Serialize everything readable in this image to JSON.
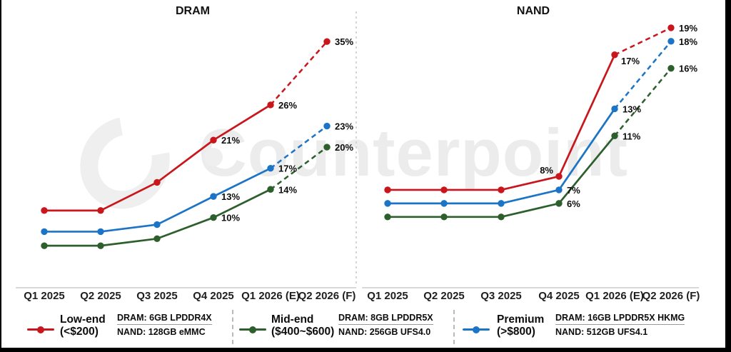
{
  "watermark": {
    "text": "Counterpoint",
    "logo": "counterpoint-logo",
    "color": "#ececec"
  },
  "colors": {
    "low_end": "#C9161D",
    "mid_end": "#2D5F2D",
    "premium": "#1B74C5",
    "axis": "#d9d9d9",
    "divider": "#c9c9c9"
  },
  "chart_data": [
    {
      "type": "line",
      "title": "DRAM",
      "unit": "%",
      "categories": [
        "Q1 2025",
        "Q2 2025",
        "Q3 2025",
        "Q4 2025",
        "Q1 2026 (E)",
        "Q2 2026 (F)"
      ],
      "forecast_from_index": 4,
      "ylim": [
        0,
        38
      ],
      "grid": false,
      "series": [
        {
          "name": "Low-end (<$200)",
          "color": "#C9161D",
          "values": [
            11,
            11,
            15,
            21,
            26,
            35
          ],
          "labels": [
            "",
            "",
            "",
            "21%",
            "26%",
            "35%"
          ]
        },
        {
          "name": "Mid-end ($400~$600)",
          "color": "#2D5F2D",
          "values": [
            6,
            6,
            7,
            10,
            14,
            20
          ],
          "labels": [
            "",
            "",
            "",
            "10%",
            "14%",
            "20%"
          ]
        },
        {
          "name": "Premium (>$800)",
          "color": "#1B74C5",
          "values": [
            8,
            8,
            9,
            13,
            17,
            23
          ],
          "labels": [
            "",
            "",
            "",
            "13%",
            "17%",
            "23%"
          ]
        }
      ]
    },
    {
      "type": "line",
      "title": "NAND",
      "unit": "%",
      "categories": [
        "Q1 2025",
        "Q2 2025",
        "Q3 2025",
        "Q4 2025",
        "Q1 2026 (E)",
        "Q2 2026 (F)"
      ],
      "forecast_from_index": 4,
      "ylim": [
        0,
        20
      ],
      "grid": false,
      "series": [
        {
          "name": "Low-end (<$200)",
          "color": "#C9161D",
          "values": [
            7,
            7,
            7,
            8,
            17,
            19
          ],
          "labels": [
            "",
            "",
            "",
            "8%",
            "17%",
            "19%"
          ]
        },
        {
          "name": "Mid-end ($400~$600)",
          "color": "#2D5F2D",
          "values": [
            5,
            5,
            5,
            6,
            11,
            16
          ],
          "labels": [
            "",
            "",
            "",
            "6%",
            "11%",
            "16%"
          ]
        },
        {
          "name": "Premium (>$800)",
          "color": "#1B74C5",
          "values": [
            6,
            6,
            6,
            7,
            13,
            18
          ],
          "labels": [
            "",
            "",
            "",
            "7%",
            "13%",
            "18%"
          ]
        }
      ]
    }
  ],
  "legend": {
    "groups": [
      {
        "name": "Low-end",
        "range": "(<$200)",
        "color": "#C9161D",
        "dram": "DRAM: 6GB LPDDR4X",
        "nand": "NAND: 128GB eMMC"
      },
      {
        "name": "Mid-end",
        "range": "($400~$600)",
        "color": "#2D5F2D",
        "dram": "DRAM: 8GB LPDDR5X",
        "nand": "NAND: 256GB UFS4.0"
      },
      {
        "name": "Premium",
        "range": "(>$800)",
        "color": "#1B74C5",
        "dram": "DRAM: 16GB LPDDR5X HKMG",
        "nand": "NAND: 512GB UFS4.1"
      }
    ]
  }
}
